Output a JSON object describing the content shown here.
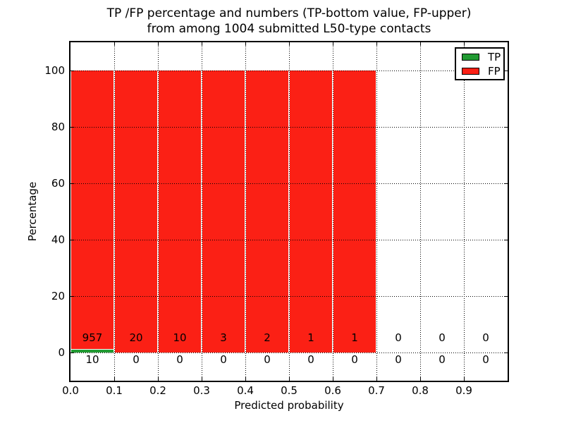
{
  "figure": {
    "title_line1": "TP /FP percentage and numbers (TP-bottom value, FP-upper)",
    "title_line2": "from among 1004 submitted L50-type contacts",
    "xlabel": "Predicted probability",
    "ylabel": "Percentage"
  },
  "legend": {
    "items": [
      {
        "label": "TP",
        "color": "#219a32"
      },
      {
        "label": "FP",
        "color": "#fb2015"
      }
    ]
  },
  "chart_data": {
    "type": "bar",
    "stacked": true,
    "title": "TP /FP percentage and numbers (TP-bottom value, FP-upper) from among 1004 submitted L50-type contacts",
    "xlabel": "Predicted probability",
    "ylabel": "Percentage",
    "xlim": [
      0.0,
      1.0
    ],
    "ylim": [
      -10,
      110
    ],
    "bin_width": 0.1,
    "x_tick_labels": [
      "0.0",
      "0.1",
      "0.2",
      "0.3",
      "0.4",
      "0.5",
      "0.6",
      "0.7",
      "0.8",
      "0.9"
    ],
    "y_ticks": [
      0,
      20,
      40,
      60,
      80,
      100
    ],
    "grid": "dotted, both axes, on top of bars",
    "legend_position": "upper right",
    "colors": {
      "tp": "#219a32",
      "fp": "#fb2015"
    },
    "categories": [
      "0.0-0.1",
      "0.1-0.2",
      "0.2-0.3",
      "0.3-0.4",
      "0.4-0.5",
      "0.5-0.6",
      "0.6-0.7",
      "0.7-0.8",
      "0.8-0.9",
      "0.9-1.0"
    ],
    "series": [
      {
        "name": "TP",
        "counts": [
          10,
          0,
          0,
          0,
          0,
          0,
          0,
          0,
          0,
          0
        ],
        "percent": [
          1.03,
          0,
          0,
          0,
          0,
          0,
          0,
          0,
          0,
          0
        ]
      },
      {
        "name": "FP",
        "counts": [
          957,
          20,
          10,
          3,
          2,
          1,
          1,
          0,
          0,
          0
        ],
        "percent": [
          98.97,
          100,
          100,
          100,
          100,
          100,
          100,
          0,
          0,
          0
        ]
      }
    ]
  }
}
